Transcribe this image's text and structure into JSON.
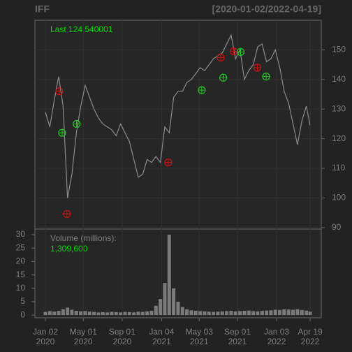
{
  "chart_data": [
    {
      "type": "line",
      "title": "IFF",
      "subtitle": "[2020-01-02/2022-04-19]",
      "annotation": "Last 124.540001",
      "ylim": [
        89.5,
        160
      ],
      "yticks": [
        90,
        100,
        110,
        120,
        130,
        140,
        150
      ],
      "grid": true,
      "series": [
        {
          "color": "#8c8c8c",
          "x": [
            "2020-01-02",
            "2020-01-16",
            "2020-01-30",
            "2020-02-13",
            "2020-02-27",
            "2020-03-12",
            "2020-03-26",
            "2020-04-09",
            "2020-04-23",
            "2020-05-07",
            "2020-05-21",
            "2020-06-04",
            "2020-06-18",
            "2020-07-02",
            "2020-07-16",
            "2020-07-30",
            "2020-08-13",
            "2020-08-27",
            "2020-09-10",
            "2020-09-24",
            "2020-10-08",
            "2020-10-22",
            "2020-11-05",
            "2020-11-19",
            "2020-12-03",
            "2020-12-17",
            "2020-12-31",
            "2021-01-14",
            "2021-01-28",
            "2021-02-11",
            "2021-02-25",
            "2021-03-11",
            "2021-03-25",
            "2021-04-08",
            "2021-04-22",
            "2021-05-06",
            "2021-05-20",
            "2021-06-03",
            "2021-06-17",
            "2021-07-01",
            "2021-07-15",
            "2021-07-29",
            "2021-08-12",
            "2021-08-26",
            "2021-09-09",
            "2021-09-23",
            "2021-10-07",
            "2021-10-21",
            "2021-11-04",
            "2021-11-18",
            "2021-12-02",
            "2021-12-16",
            "2021-12-30",
            "2022-01-13",
            "2022-01-27",
            "2022-02-10",
            "2022-02-24",
            "2022-03-10",
            "2022-03-24",
            "2022-04-07",
            "2022-04-19"
          ],
          "values": [
            129,
            124,
            133,
            141,
            131,
            100,
            108,
            122,
            131,
            138,
            134,
            130,
            127,
            125,
            124,
            123,
            121,
            125,
            122,
            119,
            113,
            107,
            108,
            113,
            112,
            114,
            112,
            124,
            122,
            134,
            136,
            136,
            139,
            140,
            142,
            144,
            143,
            145,
            147,
            148,
            149,
            152,
            155,
            147,
            150,
            140,
            143,
            145,
            151,
            152,
            146,
            147,
            150,
            144,
            136,
            132,
            125,
            118,
            126,
            131,
            124.54
          ]
        }
      ],
      "markers": [
        {
          "color": "#cc1111",
          "x": [
            "2020-02-15",
            "2020-03-10",
            "2021-01-25",
            "2021-07-10",
            "2021-08-20",
            "2021-11-03"
          ],
          "values": [
            136,
            94.6,
            112,
            147.4,
            149.5,
            144
          ]
        },
        {
          "color": "#22cc22",
          "x": [
            "2020-02-24",
            "2020-04-10",
            "2021-05-11",
            "2021-07-18",
            "2021-09-11",
            "2021-12-01"
          ],
          "values": [
            122,
            125,
            136.4,
            140.6,
            149.3,
            141
          ]
        }
      ]
    },
    {
      "type": "bar",
      "annotation": "Volume (millions):",
      "value_annotation": "1,309,600",
      "ylim": [
        -1,
        32.1
      ],
      "yticks": [
        0,
        5,
        10,
        15,
        20,
        25,
        30
      ],
      "color": "#7a7a7a",
      "x": [
        "2020-01-02",
        "2020-01-16",
        "2020-01-30",
        "2020-02-13",
        "2020-02-27",
        "2020-03-12",
        "2020-03-26",
        "2020-04-09",
        "2020-04-23",
        "2020-05-07",
        "2020-05-21",
        "2020-06-04",
        "2020-06-18",
        "2020-07-02",
        "2020-07-16",
        "2020-07-30",
        "2020-08-13",
        "2020-08-27",
        "2020-09-10",
        "2020-09-24",
        "2020-10-08",
        "2020-10-22",
        "2020-11-05",
        "2020-11-19",
        "2020-12-03",
        "2020-12-17",
        "2020-12-31",
        "2021-01-14",
        "2021-01-28",
        "2021-02-11",
        "2021-02-25",
        "2021-03-11",
        "2021-03-25",
        "2021-04-08",
        "2021-04-22",
        "2021-05-06",
        "2021-05-20",
        "2021-06-03",
        "2021-06-17",
        "2021-07-01",
        "2021-07-15",
        "2021-07-29",
        "2021-08-12",
        "2021-08-26",
        "2021-09-09",
        "2021-09-23",
        "2021-10-07",
        "2021-10-21",
        "2021-11-04",
        "2021-11-18",
        "2021-12-02",
        "2021-12-16",
        "2021-12-30",
        "2022-01-13",
        "2022-01-27",
        "2022-02-10",
        "2022-02-24",
        "2022-03-10",
        "2022-03-24",
        "2022-04-07",
        "2022-04-19"
      ],
      "values": [
        1.2,
        1.5,
        1.3,
        1.6,
        2.2,
        2.8,
        2.0,
        1.6,
        1.4,
        1.5,
        1.3,
        1.2,
        1.0,
        1.1,
        1.0,
        1.2,
        1.1,
        1.0,
        1.2,
        1.1,
        1.0,
        1.3,
        1.2,
        1.4,
        1.6,
        3.5,
        6.0,
        12.0,
        30.0,
        10.0,
        5.0,
        3.0,
        2.2,
        1.8,
        1.6,
        1.5,
        1.4,
        1.3,
        1.2,
        1.3,
        1.4,
        1.5,
        1.6,
        1.4,
        1.5,
        1.6,
        1.7,
        1.5,
        1.4,
        1.6,
        1.7,
        1.8,
        2.0,
        1.9,
        2.2,
        2.1,
        2.0,
        2.2,
        1.9,
        1.7,
        1.31
      ],
      "xticks": [
        {
          "value": "2020-01-02",
          "label": "Jan 02\n2020"
        },
        {
          "value": "2020-05-01",
          "label": "May 01\n2020"
        },
        {
          "value": "2020-09-01",
          "label": "Sep 01\n2020"
        },
        {
          "value": "2021-01-04",
          "label": "Jan 04\n2021"
        },
        {
          "value": "2021-05-03",
          "label": "May 03\n2021"
        },
        {
          "value": "2021-09-01",
          "label": "Sep 01\n2021"
        },
        {
          "value": "2022-01-03",
          "label": "Jan 03\n2022"
        },
        {
          "value": "2022-04-19",
          "label": "Apr 19\n2022"
        }
      ]
    }
  ]
}
